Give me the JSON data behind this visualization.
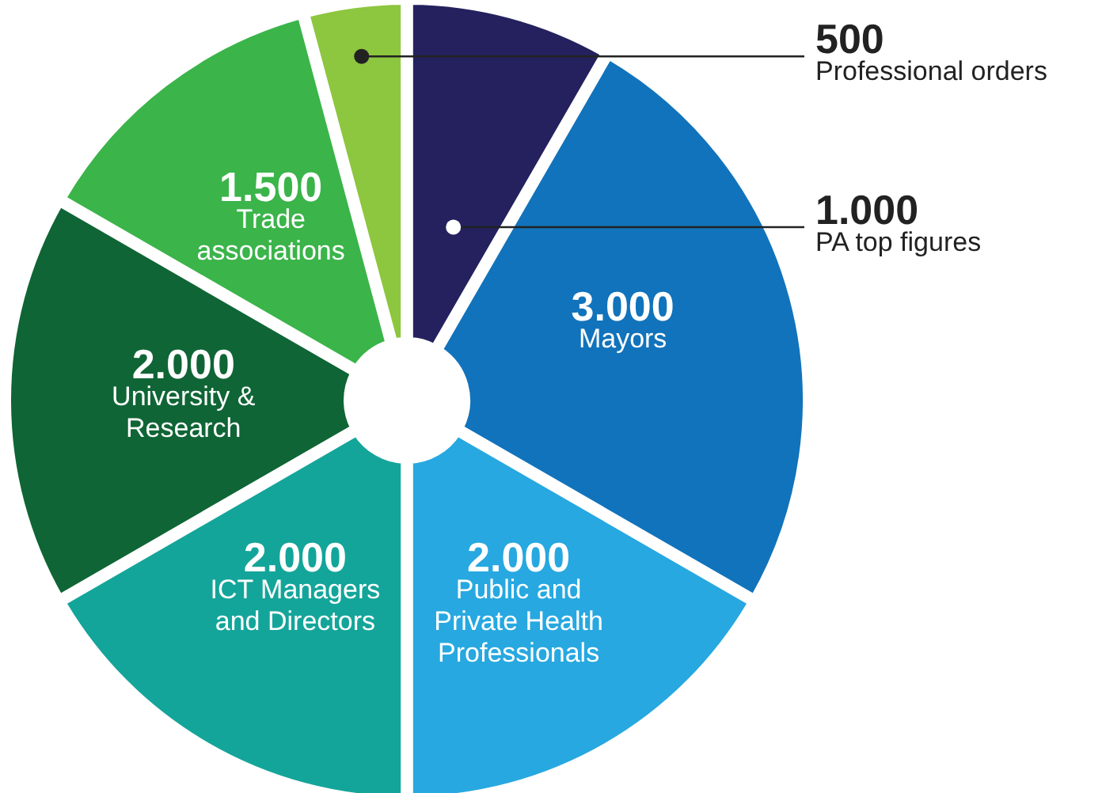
{
  "chart_data": {
    "type": "donut",
    "categories": [
      "PA top figures",
      "Mayors",
      "Public and Private Health Professionals",
      "ICT Managers and Directors",
      "University & Research",
      "Trade associations",
      "Professional orders"
    ],
    "values": [
      1000,
      3000,
      2000,
      2000,
      2000,
      1500,
      500
    ],
    "value_labels": [
      "1.000",
      "3.000",
      "2.000",
      "2.000",
      "2.000",
      "1.500",
      "500"
    ],
    "colors": [
      "#24215e",
      "#1173bb",
      "#27a8e0",
      "#14a59a",
      "#0f6535",
      "#3bb44a",
      "#8dc63f"
    ]
  }
}
